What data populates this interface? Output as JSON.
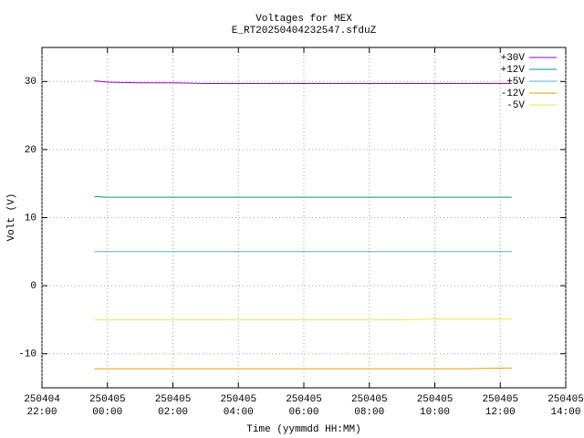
{
  "chart_data": {
    "type": "line",
    "title": "Voltages for MEX",
    "subtitle": "E_RT20250404232547.sfduZ",
    "x_label": "Time (yymmdd HH:MM)",
    "y_label": "Volt (V)",
    "x": [
      -0.4,
      0,
      1,
      2,
      3,
      4,
      5,
      6,
      7,
      8,
      9,
      10,
      11,
      12,
      12.35
    ],
    "series": [
      {
        "name": "+30V",
        "color": "#9400d3",
        "values": [
          30.1,
          29.9,
          29.8,
          29.8,
          29.7,
          29.7,
          29.7,
          29.7,
          29.7,
          29.7,
          29.7,
          29.7,
          29.7,
          29.7,
          29.7
        ]
      },
      {
        "name": "+12V",
        "color": "#009e73",
        "values": [
          13.1,
          13.0,
          13.0,
          13.0,
          13.0,
          13.0,
          13.0,
          13.0,
          13.0,
          13.0,
          13.0,
          13.0,
          13.0,
          13.0,
          13.0
        ]
      },
      {
        "name": "+5V",
        "color": "#56b4e9",
        "values": [
          5.0,
          5.0,
          5.0,
          5.0,
          5.0,
          5.0,
          5.0,
          5.0,
          5.0,
          5.0,
          5.0,
          5.0,
          5.0,
          5.0,
          5.0
        ]
      },
      {
        "name": "-12V",
        "color": "#e69f00",
        "values": [
          -12.2,
          -12.2,
          -12.2,
          -12.2,
          -12.2,
          -12.2,
          -12.2,
          -12.2,
          -12.2,
          -12.2,
          -12.2,
          -12.2,
          -12.2,
          -12.1,
          -12.1
        ]
      },
      {
        "name": "-5V",
        "color": "#f0e442",
        "values": [
          -5.0,
          -5.0,
          -5.0,
          -5.0,
          -5.0,
          -5.0,
          -5.0,
          -5.0,
          -5.0,
          -5.0,
          -5.0,
          -4.9,
          -4.9,
          -4.9,
          -4.9
        ]
      }
    ],
    "xlim": [
      -2,
      14
    ],
    "xticks": [
      {
        "value": -2,
        "label": "250404\n22:00"
      },
      {
        "value": 0,
        "label": "250405\n00:00"
      },
      {
        "value": 2,
        "label": "250405\n02:00"
      },
      {
        "value": 4,
        "label": "250405\n04:00"
      },
      {
        "value": 6,
        "label": "250405\n06:00"
      },
      {
        "value": 8,
        "label": "250405\n08:00"
      },
      {
        "value": 10,
        "label": "250405\n10:00"
      },
      {
        "value": 12,
        "label": "250405\n12:00"
      },
      {
        "value": 14,
        "label": "250405\n14:00"
      }
    ],
    "ylim": [
      -15,
      35
    ],
    "yticks": [
      -10,
      0,
      10,
      20,
      30
    ],
    "grid": true,
    "legend": "top-right"
  }
}
